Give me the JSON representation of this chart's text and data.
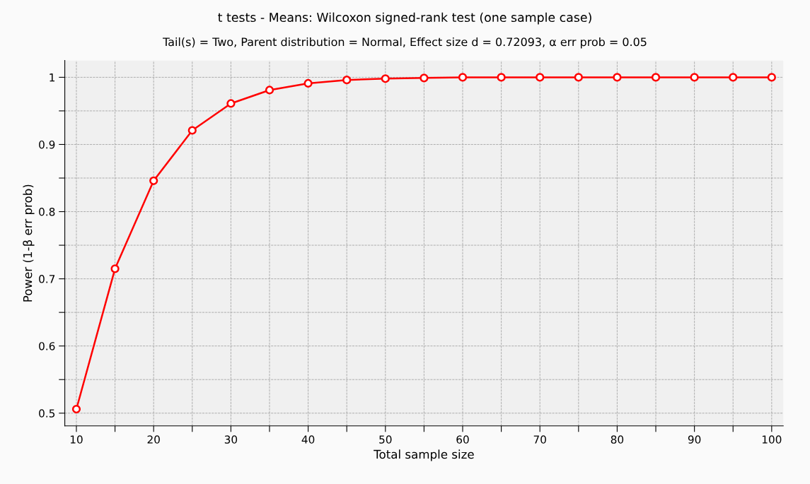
{
  "chart_data": {
    "type": "line",
    "title": "t tests - Means: Wilcoxon signed-rank test (one sample case)",
    "subtitle": "Tail(s) = Two, Parent distribution = Normal, Effect size d = 0.72093, α err prob = 0.05",
    "xlabel": "Total sample size",
    "ylabel": "Power (1-β err prob)",
    "x": [
      10,
      15,
      20,
      25,
      30,
      35,
      40,
      45,
      50,
      55,
      60,
      65,
      70,
      75,
      80,
      85,
      90,
      95,
      100
    ],
    "series": [
      {
        "color": "#ff0000",
        "values": [
          0.506,
          0.715,
          0.846,
          0.921,
          0.961,
          0.981,
          0.991,
          0.996,
          0.998,
          0.999,
          1,
          1,
          1,
          1,
          1,
          1,
          1,
          1,
          1
        ]
      }
    ],
    "xlim": [
      8.5,
      101.5
    ],
    "ylim": [
      0.481,
      1.025
    ],
    "xticks": [
      10,
      {
        "value": 15,
        "label": null
      },
      20,
      {
        "value": 25,
        "label": null
      },
      30,
      {
        "value": 35,
        "label": null
      },
      40,
      {
        "value": 45,
        "label": null
      },
      50,
      {
        "value": 55,
        "label": null
      },
      60,
      {
        "value": 65,
        "label": null
      },
      70,
      {
        "value": 75,
        "label": null
      },
      80,
      {
        "value": 85,
        "label": null
      },
      90,
      {
        "value": 95,
        "label": null
      },
      100
    ],
    "yticks": [
      0.5,
      {
        "value": 0.55,
        "label": null
      },
      0.6,
      {
        "value": 0.65,
        "label": null
      },
      0.7,
      {
        "value": 0.75,
        "label": null
      },
      0.8,
      {
        "value": 0.85,
        "label": null
      },
      0.9,
      {
        "value": 0.95,
        "label": null
      },
      1
    ],
    "grid": true,
    "marker": "circle",
    "line_style": "solid"
  }
}
